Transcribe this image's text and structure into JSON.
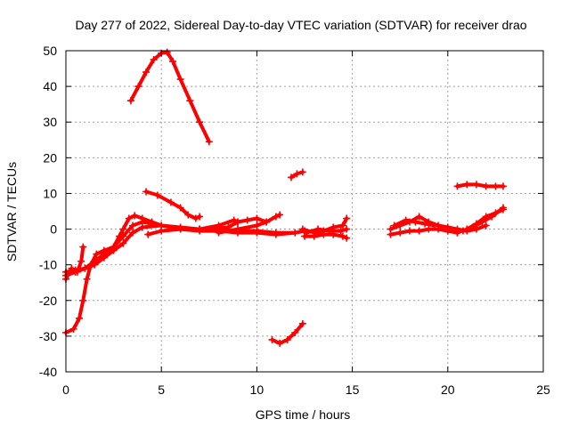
{
  "chart_data": {
    "type": "scatter",
    "title": "Day 277 of 2022, Sidereal Day-to-day VTEC variation (SDTVAR) for receiver drao",
    "xlabel": "GPS time / hours",
    "ylabel": "SDTVAR / TECUs",
    "xlim": [
      0,
      25
    ],
    "ylim": [
      -40,
      50
    ],
    "x_ticks": [
      "0",
      "5",
      "10",
      "15",
      "20",
      "25"
    ],
    "y_ticks": [
      "-40",
      "-30",
      "-20",
      "-10",
      "0",
      "10",
      "20",
      "30",
      "40",
      "50"
    ],
    "grid": true,
    "legend": "none",
    "series_color": "#ff0000",
    "series": [
      {
        "values": [
          [
            3.4,
            36
          ],
          [
            3.8,
            40
          ],
          [
            4.2,
            44
          ],
          [
            4.6,
            47.5
          ],
          [
            5.0,
            49.3
          ],
          [
            5.3,
            49.6
          ],
          [
            5.6,
            47
          ],
          [
            6.0,
            42
          ],
          [
            6.5,
            36
          ],
          [
            7.0,
            30
          ],
          [
            7.5,
            24.5
          ]
        ]
      },
      {
        "values": [
          [
            0.0,
            -29
          ],
          [
            0.4,
            -28
          ],
          [
            0.7,
            -25
          ],
          [
            0.9,
            -20
          ],
          [
            1.1,
            -14
          ],
          [
            1.3,
            -10
          ],
          [
            1.6,
            -7
          ],
          [
            2.0,
            -6
          ],
          [
            2.5,
            -5
          ],
          [
            3.0,
            -2
          ],
          [
            3.5,
            1
          ],
          [
            4.0,
            2
          ],
          [
            4.5,
            1.5
          ]
        ]
      },
      {
        "values": [
          [
            0.0,
            -14
          ],
          [
            0.3,
            -11
          ],
          [
            0.6,
            -12
          ],
          [
            0.8,
            -9
          ],
          [
            0.9,
            -5
          ]
        ]
      },
      {
        "values": [
          [
            0.0,
            -12
          ],
          [
            0.5,
            -11.5
          ],
          [
            1.0,
            -11
          ],
          [
            1.5,
            -9
          ],
          [
            2.0,
            -7
          ],
          [
            2.5,
            -5
          ],
          [
            2.8,
            -2
          ],
          [
            3.0,
            0
          ],
          [
            3.3,
            3
          ],
          [
            3.6,
            3.8
          ],
          [
            4.0,
            3
          ],
          [
            4.5,
            2
          ],
          [
            5.0,
            1
          ],
          [
            6.0,
            0.5
          ],
          [
            7.0,
            0
          ],
          [
            8.0,
            0
          ],
          [
            9.0,
            -0.5
          ],
          [
            10.0,
            -0.5
          ],
          [
            11.0,
            -1
          ],
          [
            12.0,
            -1
          ],
          [
            12.5,
            -0.5
          ]
        ]
      },
      {
        "values": [
          [
            0.0,
            -13
          ],
          [
            0.5,
            -12
          ],
          [
            1.0,
            -11
          ],
          [
            1.5,
            -10
          ],
          [
            2.0,
            -8
          ],
          [
            2.5,
            -6
          ],
          [
            3.0,
            -4
          ],
          [
            3.5,
            -1
          ],
          [
            4.0,
            0.5
          ],
          [
            5.0,
            1
          ],
          [
            6.0,
            0
          ],
          [
            7.0,
            -0.5
          ],
          [
            8.0,
            -0.5
          ],
          [
            9.0,
            -1
          ],
          [
            10.0,
            -1
          ],
          [
            11.0,
            -1.5
          ],
          [
            12.0,
            -1
          ]
        ]
      },
      {
        "values": [
          [
            4.2,
            10.5
          ],
          [
            4.8,
            9.5
          ],
          [
            5.5,
            7.5
          ],
          [
            6.0,
            6
          ],
          [
            6.4,
            4
          ],
          [
            6.8,
            3
          ],
          [
            7.0,
            3.5
          ]
        ]
      },
      {
        "values": [
          [
            4.3,
            -1.5
          ],
          [
            5.0,
            -0.5
          ],
          [
            6.0,
            0
          ],
          [
            7.0,
            0
          ],
          [
            8.0,
            1
          ],
          [
            8.8,
            2.5
          ],
          [
            9.0,
            2
          ]
        ]
      },
      {
        "values": [
          [
            7.5,
            0
          ],
          [
            8.5,
            0.5
          ],
          [
            9.0,
            2
          ],
          [
            9.5,
            2.5
          ],
          [
            10.0,
            3
          ],
          [
            10.5,
            2
          ]
        ]
      },
      {
        "values": [
          [
            8.0,
            -1
          ],
          [
            9.0,
            0
          ],
          [
            10.0,
            1
          ],
          [
            10.5,
            2
          ],
          [
            11.0,
            3.5
          ],
          [
            11.2,
            4
          ]
        ]
      },
      {
        "values": [
          [
            10.8,
            -31
          ],
          [
            11.2,
            -32
          ],
          [
            11.6,
            -31
          ],
          [
            12.0,
            -29
          ],
          [
            12.4,
            -26.5
          ]
        ]
      },
      {
        "values": [
          [
            11.8,
            14.5
          ],
          [
            12.1,
            15.5
          ],
          [
            12.4,
            16
          ]
        ]
      },
      {
        "values": [
          [
            12.4,
            0
          ],
          [
            13.0,
            -1
          ],
          [
            13.5,
            -0.5
          ],
          [
            14.0,
            0.5
          ],
          [
            14.5,
            1
          ],
          [
            14.7,
            3
          ]
        ]
      },
      {
        "values": [
          [
            12.5,
            -2
          ],
          [
            13.0,
            -2
          ],
          [
            13.5,
            -1.5
          ],
          [
            14.0,
            -1.5
          ],
          [
            14.5,
            -2
          ],
          [
            14.7,
            -2.5
          ]
        ]
      },
      {
        "values": [
          [
            12.6,
            -1
          ],
          [
            13.2,
            0
          ],
          [
            13.8,
            -0.5
          ],
          [
            14.4,
            -0.5
          ],
          [
            14.7,
            0
          ]
        ]
      },
      {
        "values": [
          [
            17.0,
            0
          ],
          [
            17.5,
            1
          ],
          [
            18.0,
            2
          ],
          [
            18.5,
            3.5
          ],
          [
            19.0,
            2
          ],
          [
            19.5,
            1
          ],
          [
            20.0,
            0.5
          ],
          [
            20.5,
            0
          ],
          [
            21.0,
            -0.5
          ],
          [
            21.5,
            0
          ],
          [
            22.0,
            1
          ]
        ]
      },
      {
        "values": [
          [
            17.0,
            -1.5
          ],
          [
            17.5,
            -1
          ],
          [
            18.0,
            -0.5
          ],
          [
            18.5,
            -0.5
          ],
          [
            19.0,
            0
          ],
          [
            19.5,
            0
          ],
          [
            20.0,
            -0.5
          ],
          [
            20.5,
            -1
          ]
        ]
      },
      {
        "values": [
          [
            17.2,
            1
          ],
          [
            17.8,
            2.5
          ],
          [
            18.3,
            2
          ],
          [
            18.8,
            1.5
          ],
          [
            19.3,
            1
          ]
        ]
      },
      {
        "values": [
          [
            20.5,
            12
          ],
          [
            21.0,
            12.5
          ],
          [
            21.5,
            12.5
          ],
          [
            22.0,
            12
          ],
          [
            22.5,
            12
          ],
          [
            22.9,
            12
          ]
        ]
      },
      {
        "values": [
          [
            20.5,
            -1
          ],
          [
            21.0,
            0
          ],
          [
            21.5,
            1.5
          ],
          [
            22.0,
            3.5
          ],
          [
            22.5,
            4.5
          ],
          [
            22.9,
            5.5
          ]
        ]
      },
      {
        "values": [
          [
            20.8,
            -0.5
          ],
          [
            21.3,
            0.5
          ],
          [
            21.8,
            2
          ],
          [
            22.3,
            3.5
          ],
          [
            22.9,
            6
          ]
        ]
      }
    ]
  }
}
